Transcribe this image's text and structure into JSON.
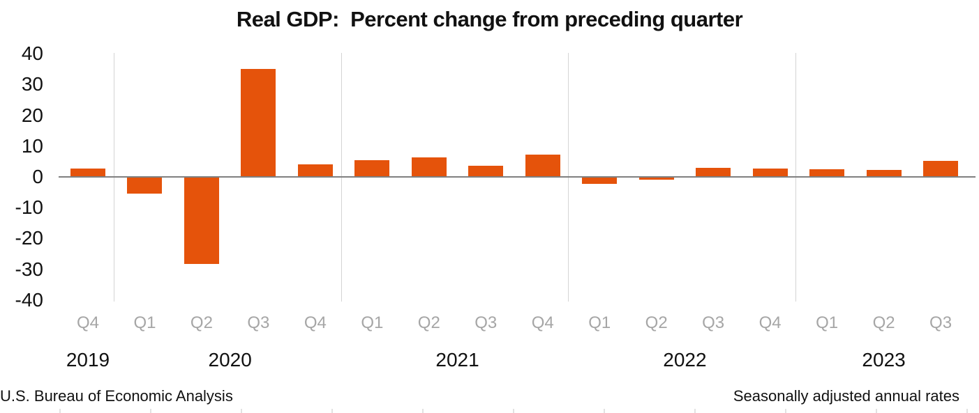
{
  "title": "Real GDP:  Percent change from preceding quarter",
  "footer": {
    "left": "U.S. Bureau of Economic Analysis",
    "right": "Seasonally adjusted annual rates"
  },
  "colors": {
    "bar": "#e5530b",
    "axis_line": "#7f7f7f",
    "gridline": "#d4d4d4",
    "quarter_label": "#a6a6a6",
    "text": "#111111"
  },
  "chart_data": {
    "type": "bar",
    "title": "Real GDP:  Percent change from preceding quarter",
    "xlabel": "",
    "ylabel": "",
    "categories": [
      "Q4",
      "Q1",
      "Q2",
      "Q3",
      "Q4",
      "Q1",
      "Q2",
      "Q3",
      "Q4",
      "Q1",
      "Q2",
      "Q3",
      "Q4",
      "Q1",
      "Q2",
      "Q3"
    ],
    "values": [
      2.6,
      -5.3,
      -28.0,
      34.8,
      3.9,
      5.2,
      6.2,
      3.3,
      7.0,
      -2.0,
      -0.6,
      2.7,
      2.6,
      2.2,
      2.1,
      4.9
    ],
    "year_groups": [
      {
        "label": "2019",
        "count": 1
      },
      {
        "label": "2020",
        "count": 4
      },
      {
        "label": "2021",
        "count": 4
      },
      {
        "label": "2022",
        "count": 4
      },
      {
        "label": "2023",
        "count": 3
      }
    ],
    "y_ticks": [
      40,
      30,
      20,
      10,
      0,
      -10,
      -20,
      -30,
      -40
    ],
    "ylim": [
      -40,
      40
    ],
    "grid": "vertical-year-separators-only",
    "legend": "none",
    "unit": "percent, seasonally adjusted annual rate"
  }
}
